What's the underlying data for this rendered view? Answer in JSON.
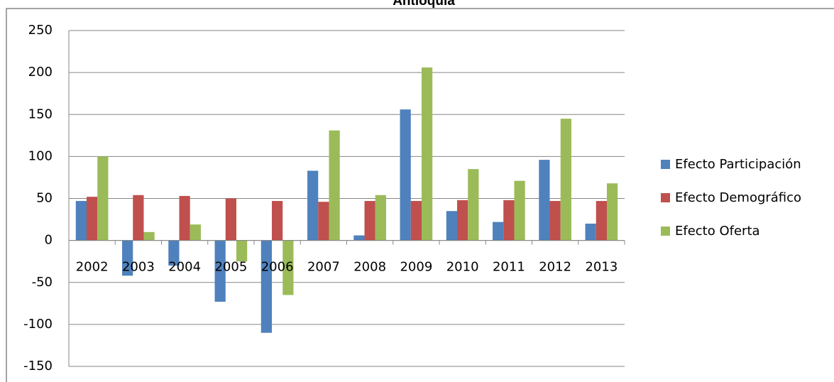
{
  "chart_data": {
    "type": "bar",
    "title": "Antioquia",
    "categories": [
      "2002",
      "2003",
      "2004",
      "2005",
      "2006",
      "2007",
      "2008",
      "2009",
      "2010",
      "2011",
      "2012",
      "2013"
    ],
    "series": [
      {
        "name": "Efecto Participación",
        "color": "#4f81bd",
        "values": [
          47,
          -42,
          -30,
          -73,
          -110,
          83,
          6,
          156,
          35,
          22,
          96,
          20
        ]
      },
      {
        "name": "Efecto Demográfico",
        "color": "#c0504d",
        "values": [
          52,
          54,
          53,
          50,
          47,
          46,
          47,
          47,
          48,
          48,
          47,
          47
        ]
      },
      {
        "name": "Efecto Oferta",
        "color": "#9bbb59",
        "values": [
          100,
          10,
          19,
          -25,
          -65,
          131,
          54,
          206,
          85,
          71,
          145,
          68
        ]
      }
    ],
    "ylim": [
      -150,
      250
    ],
    "yticks": [
      -150,
      -100,
      -50,
      0,
      50,
      100,
      150,
      200,
      250
    ],
    "grid": true,
    "legend": "right"
  }
}
